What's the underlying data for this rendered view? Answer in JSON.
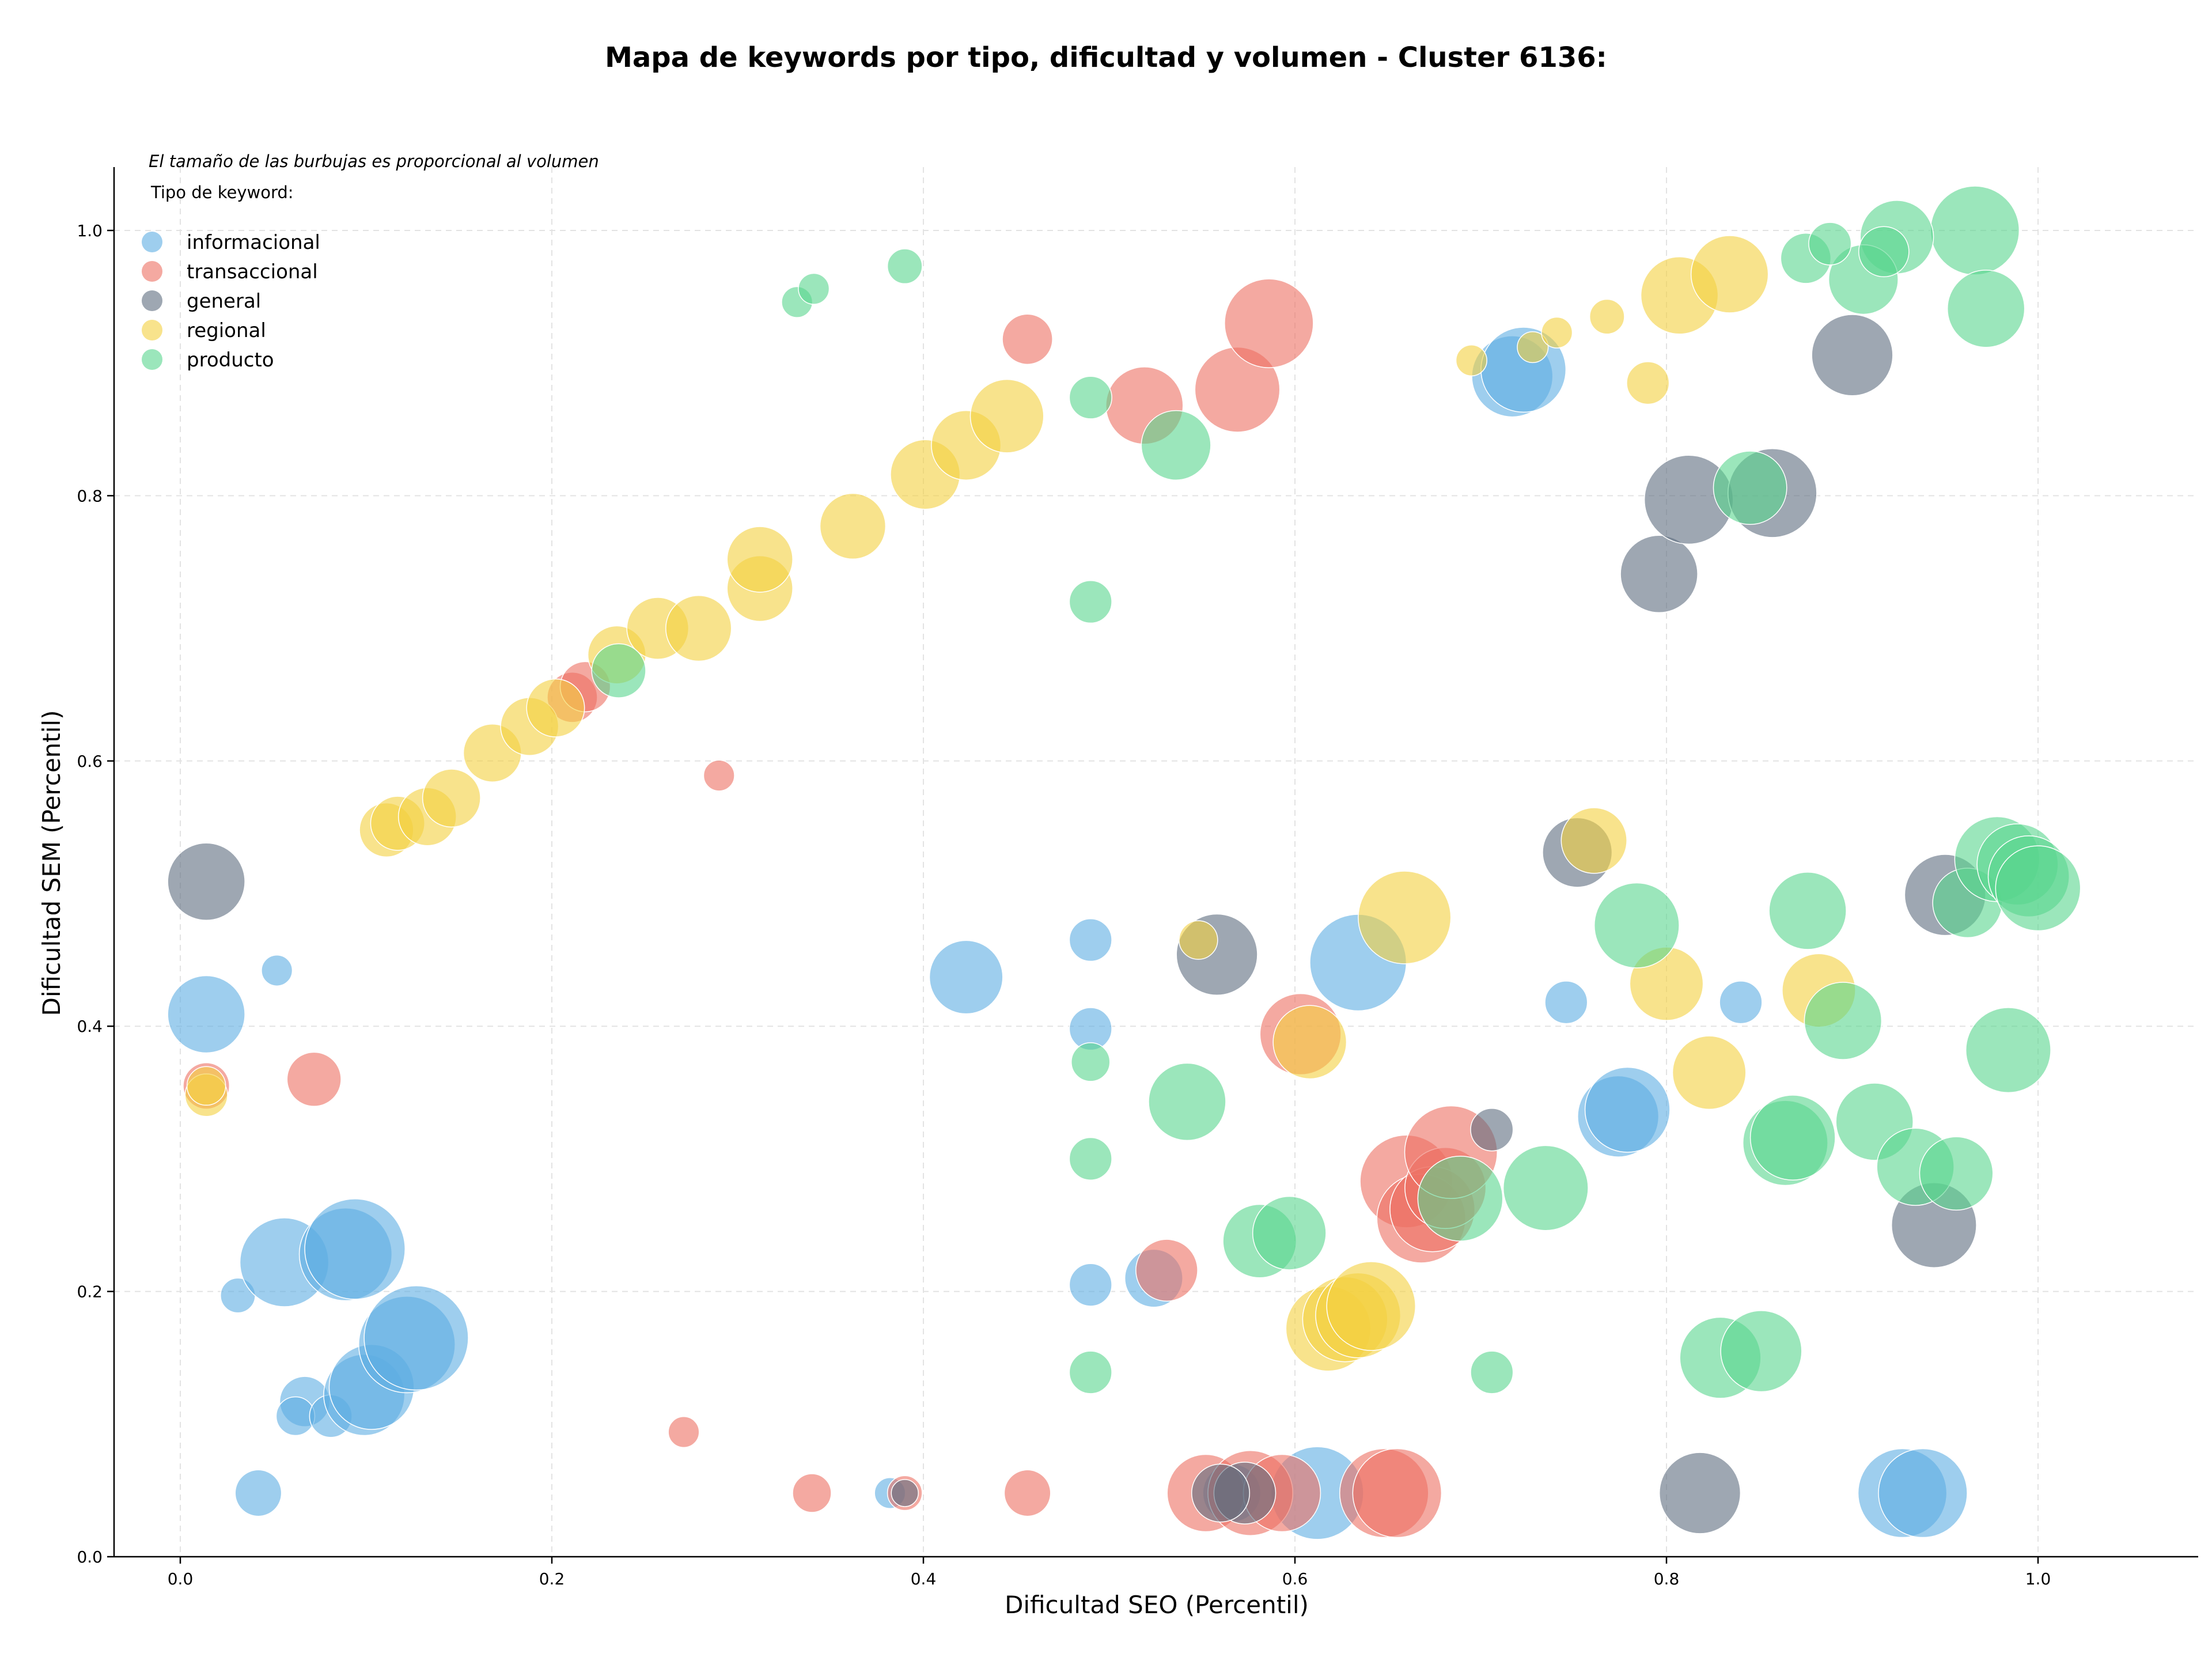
{
  "chart_data": {
    "type": "scatter",
    "title": "Mapa de keywords por tipo, dificultad y volumen - Cluster 6136:",
    "xlabel": "Dificultad SEO (Percentil)",
    "ylabel": "Dificultad SEM (Percentil)",
    "note": "El tamaño de las burbujas es proporcional al volumen",
    "legend_title": "Tipo de keyword:",
    "legend_position": "top-left",
    "xlim": [
      -0.035,
      1.05
    ],
    "ylim": [
      0,
      1.05
    ],
    "xticks": [
      "0.0",
      "0.2",
      "0.4",
      "0.6",
      "0.8",
      "1.0"
    ],
    "yticks": [
      "0.0",
      "0.2",
      "0.4",
      "0.6",
      "0.8",
      "1.0"
    ],
    "grid": true,
    "series": [
      {
        "name": "informacional",
        "color": "#5dade2",
        "points": [
          [
            0.052,
            0.442,
            8
          ],
          [
            0.014,
            0.409,
            20
          ],
          [
            0.031,
            0.197,
            9
          ],
          [
            0.056,
            0.222,
            23
          ],
          [
            0.089,
            0.228,
            24
          ],
          [
            0.094,
            0.232,
            26
          ],
          [
            0.067,
            0.117,
            13
          ],
          [
            0.062,
            0.106,
            10
          ],
          [
            0.081,
            0.106,
            11
          ],
          [
            0.099,
            0.122,
            21
          ],
          [
            0.103,
            0.128,
            22
          ],
          [
            0.122,
            0.16,
            25
          ],
          [
            0.127,
            0.165,
            27
          ],
          [
            0.042,
            0.048,
            12
          ],
          [
            0.423,
            0.437,
            19
          ],
          [
            0.49,
            0.465,
            11
          ],
          [
            0.49,
            0.398,
            11
          ],
          [
            0.49,
            0.205,
            11
          ],
          [
            0.524,
            0.21,
            15
          ],
          [
            0.382,
            0.048,
            8
          ],
          [
            0.566,
            0.048,
            15
          ],
          [
            0.612,
            0.048,
            24
          ],
          [
            0.634,
            0.448,
            25
          ],
          [
            0.746,
            0.418,
            11
          ],
          [
            0.774,
            0.332,
            21
          ],
          [
            0.779,
            0.337,
            22
          ],
          [
            0.84,
            0.418,
            11
          ],
          [
            0.717,
            0.89,
            21
          ],
          [
            0.723,
            0.895,
            22
          ],
          [
            0.927,
            0.048,
            23
          ],
          [
            0.938,
            0.048,
            23
          ]
        ]
      },
      {
        "name": "transaccional",
        "color": "#ec7063",
        "points": [
          [
            0.014,
            0.355,
            12
          ],
          [
            0.072,
            0.36,
            14
          ],
          [
            0.271,
            0.094,
            8
          ],
          [
            0.29,
            0.589,
            8
          ],
          [
            0.34,
            0.048,
            10
          ],
          [
            0.39,
            0.048,
            9
          ],
          [
            0.456,
            0.048,
            12
          ],
          [
            0.456,
            0.918,
            13
          ],
          [
            0.519,
            0.868,
            20
          ],
          [
            0.569,
            0.88,
            22
          ],
          [
            0.586,
            0.93,
            23
          ],
          [
            0.531,
            0.216,
            16
          ],
          [
            0.603,
            0.394,
            21
          ],
          [
            0.552,
            0.048,
            20
          ],
          [
            0.576,
            0.048,
            22
          ],
          [
            0.593,
            0.048,
            20
          ],
          [
            0.648,
            0.048,
            23
          ],
          [
            0.655,
            0.048,
            23
          ],
          [
            0.66,
            0.283,
            24
          ],
          [
            0.668,
            0.255,
            23
          ],
          [
            0.674,
            0.262,
            22
          ],
          [
            0.681,
            0.278,
            21
          ],
          [
            0.684,
            0.305,
            24
          ],
          [
            0.211,
            0.648,
            13
          ],
          [
            0.218,
            0.656,
            13
          ]
        ]
      },
      {
        "name": "general",
        "color": "#5d6d7e",
        "points": [
          [
            0.014,
            0.509,
            20
          ],
          [
            0.558,
            0.454,
            21
          ],
          [
            0.573,
            0.048,
            16
          ],
          [
            0.56,
            0.048,
            15
          ],
          [
            0.39,
            0.048,
            7
          ],
          [
            0.706,
            0.322,
            11
          ],
          [
            0.752,
            0.531,
            18
          ],
          [
            0.796,
            0.741,
            20
          ],
          [
            0.812,
            0.797,
            23
          ],
          [
            0.857,
            0.802,
            23
          ],
          [
            0.9,
            0.906,
            21
          ],
          [
            0.818,
            0.048,
            21
          ],
          [
            0.944,
            0.25,
            22
          ],
          [
            0.95,
            0.499,
            21
          ]
        ]
      },
      {
        "name": "regional",
        "color": "#f4d03f",
        "points": [
          [
            0.014,
            0.348,
            11
          ],
          [
            0.014,
            0.355,
            10
          ],
          [
            0.111,
            0.548,
            14
          ],
          [
            0.117,
            0.553,
            14
          ],
          [
            0.133,
            0.558,
            15
          ],
          [
            0.146,
            0.572,
            15
          ],
          [
            0.168,
            0.606,
            15
          ],
          [
            0.188,
            0.626,
            15
          ],
          [
            0.202,
            0.64,
            15
          ],
          [
            0.235,
            0.68,
            15
          ],
          [
            0.257,
            0.7,
            16
          ],
          [
            0.279,
            0.7,
            17
          ],
          [
            0.312,
            0.73,
            17
          ],
          [
            0.312,
            0.752,
            17
          ],
          [
            0.362,
            0.777,
            17
          ],
          [
            0.401,
            0.816,
            18
          ],
          [
            0.423,
            0.838,
            18
          ],
          [
            0.445,
            0.86,
            19
          ],
          [
            0.548,
            0.465,
            10
          ],
          [
            0.608,
            0.388,
            19
          ],
          [
            0.618,
            0.172,
            22
          ],
          [
            0.627,
            0.179,
            22
          ],
          [
            0.634,
            0.182,
            22
          ],
          [
            0.641,
            0.189,
            23
          ],
          [
            0.659,
            0.482,
            24
          ],
          [
            0.695,
            0.902,
            8
          ],
          [
            0.728,
            0.912,
            8
          ],
          [
            0.741,
            0.923,
            8
          ],
          [
            0.768,
            0.935,
            9
          ],
          [
            0.79,
            0.885,
            11
          ],
          [
            0.761,
            0.54,
            17
          ],
          [
            0.8,
            0.432,
            19
          ],
          [
            0.807,
            0.951,
            20
          ],
          [
            0.834,
            0.967,
            20
          ],
          [
            0.823,
            0.365,
            19
          ],
          [
            0.882,
            0.427,
            19
          ]
        ]
      },
      {
        "name": "producto",
        "color": "#58d68d",
        "points": [
          [
            0.332,
            0.946,
            8
          ],
          [
            0.341,
            0.956,
            8
          ],
          [
            0.39,
            0.973,
            9
          ],
          [
            0.49,
            0.874,
            11
          ],
          [
            0.536,
            0.838,
            18
          ],
          [
            0.49,
            0.72,
            11
          ],
          [
            0.236,
            0.668,
            14
          ],
          [
            0.49,
            0.373,
            10
          ],
          [
            0.49,
            0.3,
            11
          ],
          [
            0.49,
            0.139,
            11
          ],
          [
            0.542,
            0.343,
            20
          ],
          [
            0.581,
            0.238,
            19
          ],
          [
            0.597,
            0.244,
            19
          ],
          [
            0.689,
            0.27,
            22
          ],
          [
            0.706,
            0.139,
            11
          ],
          [
            0.735,
            0.278,
            22
          ],
          [
            0.784,
            0.476,
            22
          ],
          [
            0.829,
            0.15,
            21
          ],
          [
            0.851,
            0.155,
            21
          ],
          [
            0.845,
            0.806,
            19
          ],
          [
            0.864,
            0.312,
            22
          ],
          [
            0.868,
            0.316,
            22
          ],
          [
            0.876,
            0.487,
            20
          ],
          [
            0.895,
            0.404,
            20
          ],
          [
            0.912,
            0.328,
            20
          ],
          [
            0.934,
            0.294,
            20
          ],
          [
            0.956,
            0.289,
            19
          ],
          [
            0.962,
            0.493,
            18
          ],
          [
            0.978,
            0.526,
            22
          ],
          [
            0.989,
            0.522,
            21
          ],
          [
            0.995,
            0.513,
            21
          ],
          [
            1.0,
            0.504,
            22
          ],
          [
            0.984,
            0.382,
            22
          ],
          [
            0.966,
            1.0,
            23
          ],
          [
            0.972,
            0.941,
            20
          ],
          [
            0.924,
            0.995,
            19
          ],
          [
            0.906,
            0.963,
            18
          ],
          [
            0.917,
            0.984,
            13
          ],
          [
            0.875,
            0.979,
            13
          ],
          [
            0.888,
            0.99,
            11
          ]
        ]
      }
    ]
  }
}
